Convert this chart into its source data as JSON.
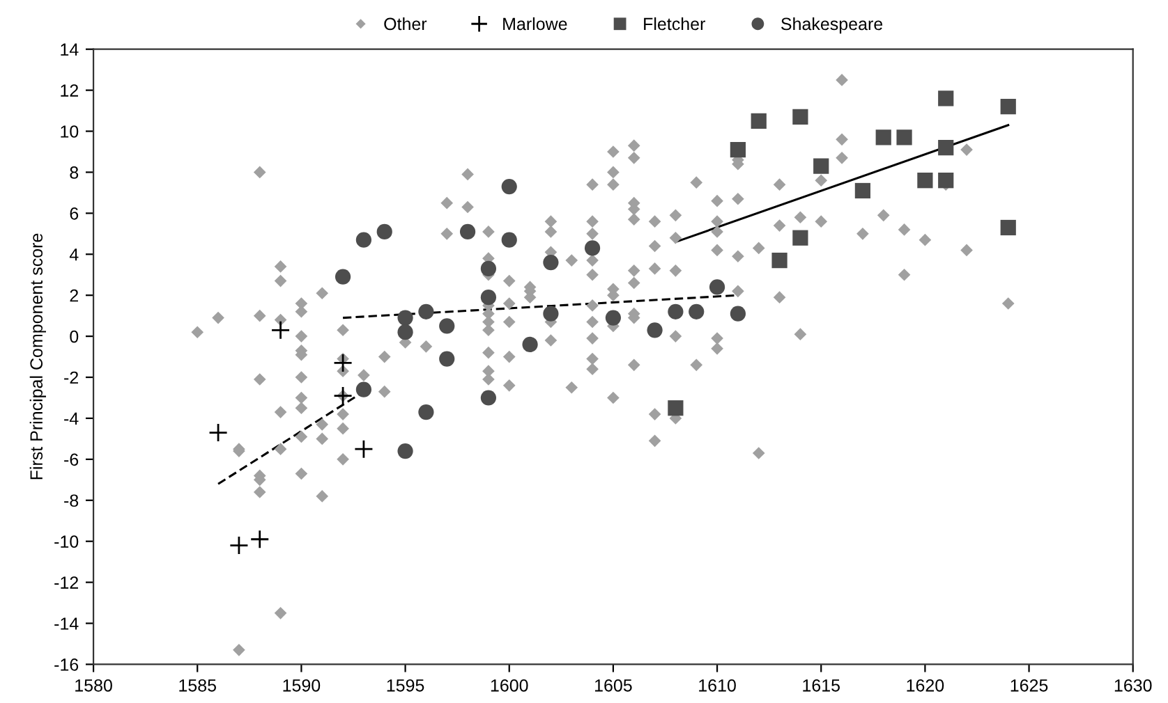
{
  "chart_data": {
    "type": "scatter",
    "ylabel": "First Principal Component score",
    "xlim": [
      1580,
      1630
    ],
    "xticks": [
      1580,
      1585,
      1590,
      1595,
      1600,
      1605,
      1610,
      1615,
      1620,
      1625,
      1630
    ],
    "ylim": [
      -16,
      14
    ],
    "yticks": [
      -16,
      -14,
      -12,
      -10,
      -8,
      -6,
      -4,
      -2,
      0,
      2,
      4,
      6,
      8,
      10,
      12,
      14
    ],
    "grid": false,
    "legend": "top",
    "series": [
      {
        "name": "Other",
        "color": "#a0a0a0",
        "marker": "diamond",
        "x": [
          1585,
          1586,
          1588,
          1589,
          1589,
          1590,
          1590,
          1591,
          1588,
          1589,
          1590,
          1590,
          1590,
          1592,
          1592,
          1593,
          1594,
          1588,
          1590,
          1590,
          1590,
          1589,
          1591,
          1591,
          1592,
          1592,
          1594,
          1592,
          1590,
          1589,
          1587,
          1587,
          1588,
          1588,
          1588,
          1590,
          1591,
          1589,
          1587,
          1592,
          1592,
          1595,
          1596,
          1597,
          1597,
          1598,
          1598,
          1599,
          1599,
          1599,
          1599,
          1599,
          1599,
          1599,
          1599,
          1599,
          1599,
          1600,
          1600,
          1600,
          1600,
          1600,
          1601,
          1601,
          1601,
          1602,
          1602,
          1602,
          1602,
          1602,
          1603,
          1603,
          1604,
          1604,
          1604,
          1604,
          1604,
          1604,
          1604,
          1604,
          1604,
          1604,
          1605,
          1605,
          1605,
          1605,
          1605,
          1605,
          1605,
          1606,
          1606,
          1606,
          1606,
          1606,
          1606,
          1606,
          1606,
          1606,
          1606,
          1607,
          1607,
          1607,
          1607,
          1607,
          1608,
          1608,
          1608,
          1608,
          1608,
          1609,
          1609,
          1610,
          1610,
          1610,
          1610,
          1610,
          1610,
          1611,
          1611,
          1611,
          1611,
          1611,
          1612,
          1612,
          1613,
          1613,
          1613,
          1614,
          1614,
          1615,
          1615,
          1616,
          1616,
          1616,
          1617,
          1618,
          1619,
          1619,
          1620,
          1621,
          1622,
          1622,
          1624
        ],
        "values": [
          0.2,
          0.9,
          8.0,
          3.4,
          2.7,
          1.6,
          1.2,
          2.1,
          1.0,
          0.8,
          0.0,
          -0.7,
          -0.9,
          0.3,
          -1.7,
          -1.9,
          -1.0,
          -2.1,
          -2.0,
          -3.0,
          -3.5,
          -3.7,
          -4.3,
          -5.0,
          -3.8,
          -4.5,
          -2.7,
          -6.0,
          -4.9,
          -5.5,
          -5.5,
          -5.6,
          -6.8,
          -7.0,
          -7.6,
          -6.7,
          -7.8,
          -13.5,
          -15.3,
          -1.1,
          -2.9,
          -0.3,
          -0.5,
          6.5,
          5.0,
          7.9,
          6.3,
          5.1,
          3.8,
          3.0,
          1.5,
          1.1,
          0.7,
          0.3,
          -0.8,
          -1.7,
          -2.1,
          2.7,
          1.6,
          0.7,
          -1.0,
          -2.4,
          2.4,
          2.2,
          1.9,
          5.6,
          5.1,
          4.1,
          0.7,
          -0.2,
          3.7,
          -2.5,
          7.4,
          5.6,
          5.0,
          3.7,
          3.0,
          1.5,
          0.7,
          -0.1,
          -1.1,
          -1.6,
          9.0,
          8.0,
          7.4,
          2.3,
          2.0,
          0.5,
          -3.0,
          9.3,
          8.7,
          6.5,
          6.2,
          5.7,
          3.2,
          2.6,
          1.1,
          0.9,
          -1.4,
          5.6,
          4.4,
          3.3,
          -3.8,
          -5.1,
          5.9,
          4.8,
          3.2,
          0.0,
          -4.0,
          7.5,
          -1.4,
          6.6,
          5.6,
          5.1,
          4.2,
          -0.1,
          -0.6,
          8.6,
          8.4,
          6.7,
          3.9,
          2.2,
          4.3,
          -5.7,
          7.4,
          5.4,
          1.9,
          5.8,
          0.1,
          7.6,
          5.6,
          12.5,
          9.6,
          8.7,
          5.0,
          5.9,
          5.2,
          3.0,
          4.7,
          7.4,
          9.1,
          4.2,
          1.6
        ]
      },
      {
        "name": "Marlowe",
        "color": "#000000",
        "marker": "cross",
        "x": [
          1586,
          1589,
          1592,
          1592,
          1593,
          1587,
          1588
        ],
        "values": [
          -4.7,
          0.3,
          -1.3,
          -2.9,
          -5.5,
          -10.2,
          -9.9
        ]
      },
      {
        "name": "Fletcher",
        "color": "#4d4d4d",
        "marker": "square",
        "x": [
          1608,
          1611,
          1612,
          1614,
          1615,
          1614,
          1613,
          1617,
          1618,
          1619,
          1620,
          1621,
          1621,
          1621,
          1624,
          1624
        ],
        "values": [
          -3.5,
          9.1,
          10.5,
          10.7,
          8.3,
          4.8,
          3.7,
          7.1,
          9.7,
          9.7,
          7.6,
          7.6,
          9.2,
          11.6,
          11.2,
          5.3
        ]
      },
      {
        "name": "Shakespeare",
        "color": "#4d4d4d",
        "marker": "circle",
        "x": [
          1592,
          1593,
          1594,
          1593,
          1595,
          1595,
          1596,
          1596,
          1595,
          1597,
          1597,
          1598,
          1599,
          1599,
          1599,
          1600,
          1600,
          1601,
          1602,
          1602,
          1604,
          1605,
          1607,
          1608,
          1609,
          1610,
          1611
        ],
        "values": [
          2.9,
          4.7,
          5.1,
          -2.6,
          0.9,
          0.2,
          1.2,
          -3.7,
          -5.6,
          0.5,
          -1.1,
          5.1,
          3.3,
          1.9,
          -3.0,
          7.3,
          4.7,
          -0.4,
          3.6,
          1.1,
          4.3,
          0.9,
          0.3,
          1.2,
          1.2,
          2.4,
          1.1
        ]
      },
      {
        "type": "line",
        "color": "#000000",
        "line_style": "dashed",
        "x": [
          1586,
          1593
        ],
        "values": [
          -7.2,
          -2.7
        ]
      },
      {
        "type": "line",
        "color": "#000000",
        "line_style": "dashed",
        "x": [
          1592,
          1611
        ],
        "values": [
          0.9,
          2.0
        ]
      },
      {
        "type": "line",
        "color": "#000000",
        "line_style": "solid",
        "x": [
          1608,
          1624
        ],
        "values": [
          4.6,
          10.3
        ]
      }
    ]
  }
}
